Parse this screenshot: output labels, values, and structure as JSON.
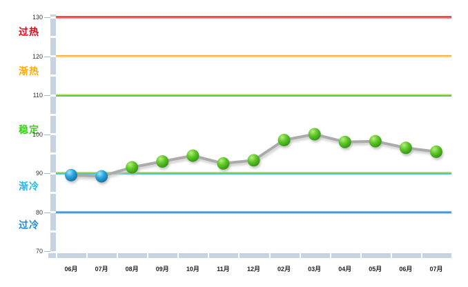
{
  "chart_data": {
    "type": "line",
    "title": "",
    "categories": [
      "06月",
      "07月",
      "08月",
      "09月",
      "10月",
      "11月",
      "12月",
      "02月",
      "03月",
      "04月",
      "05月",
      "06月",
      "07月"
    ],
    "series": [
      {
        "values": [
          89.5,
          89.2,
          91.5,
          93.0,
          94.5,
          92.5,
          93.3,
          98.5,
          100.0,
          98.0,
          98.2,
          96.5,
          95.5
        ],
        "point_colors": [
          "blue",
          "blue",
          "green",
          "green",
          "green",
          "green",
          "green",
          "green",
          "green",
          "green",
          "green",
          "green",
          "green"
        ]
      }
    ],
    "ylim": [
      70,
      130
    ],
    "yticks": [
      130,
      120,
      110,
      100,
      90,
      80,
      70
    ],
    "minor_tick_step": 5,
    "grid": "off",
    "legend": "none",
    "zones": [
      {
        "label": "过热",
        "label_color": "#e60012",
        "label_value": 126.3,
        "line_value": 130,
        "line_top_color": "#c92b26",
        "line_bottom_color": "#e0746d"
      },
      {
        "label": "渐热",
        "label_color": "#feac00",
        "label_value": 116.2,
        "line_value": 120,
        "line_top_color": "#f8ac3a",
        "line_bottom_color": "#fdd78c"
      },
      {
        "label": "稳定",
        "label_color": "#3ecb24",
        "label_value": 101.2,
        "line_value": 110,
        "line_top_color": "#b9e060",
        "line_bottom_color": "#50ba2a"
      },
      {
        "label": "渐冷",
        "label_color": "#29b6e8",
        "label_value": 86.6,
        "line_value": 90,
        "line_top_color": "#96d14f",
        "line_bottom_color": "#29bfe9"
      },
      {
        "label": "过冷",
        "label_color": "#1f8ad2",
        "label_value": 76.7,
        "line_value": 80,
        "line_top_color": "#7fb3e0",
        "line_bottom_color": "#3c86c6"
      }
    ],
    "colors": {
      "data_line": "#ababab",
      "data_line_shadow": "#c6c6c6",
      "marker_green": {
        "light": "#b9ee7c",
        "mid": "#5ec72a",
        "dark": "#2e8f10"
      },
      "marker_blue": {
        "light": "#a5e2f6",
        "mid": "#2aa6dd",
        "dark": "#116d9c"
      },
      "axis_band": "#c6d4e2",
      "tick": "#a3b8ca",
      "x_label": "#222222",
      "y_label": "#333333"
    }
  }
}
